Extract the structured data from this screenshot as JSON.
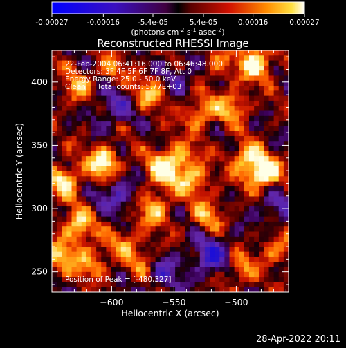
{
  "colorbar": {
    "ticks": [
      "-0.00027",
      "-0.00016",
      "-5.4e-05",
      "5.4e-05",
      "0.00016",
      "0.00027"
    ],
    "tick_values": [
      -0.00027,
      -0.00016,
      -5.4e-05,
      5.4e-05,
      0.00016,
      0.00027
    ],
    "range": [
      -0.00027,
      0.00027
    ],
    "unit_parts": [
      "(photons cm",
      "-2",
      " s",
      "-1",
      " asec",
      "-2",
      ")"
    ]
  },
  "chart_data": {
    "type": "heatmap",
    "title": "Reconstructed RHESSI Image",
    "xlabel": "Heliocentric X (arcsec)",
    "ylabel": "Heliocentric Y (arcsec)",
    "xlim": [
      -648,
      -458
    ],
    "ylim": [
      234,
      425
    ],
    "x_ticks": [
      -600,
      -550,
      -500
    ],
    "x_tick_labels": [
      "−600",
      "−550",
      "−500"
    ],
    "y_ticks": [
      250,
      300,
      350,
      400
    ],
    "y_tick_labels": [
      "250",
      "300",
      "350",
      "400"
    ],
    "grid": false,
    "info_lines": [
      "22-Feb-2004 06:41:16.000 to 06:46:48.000",
      "Detectors: 3F 4F 5F 6F 7F 8F, Att 0",
      "Energy Range: 25.0 - 50.0 keV",
      "Clean     Total counts: 5.77E+03"
    ],
    "peak_label": "Position of Peak = [-480,327]",
    "peak_position": [
      -480,
      327
    ],
    "sources": [
      {
        "x": -478,
        "y": 328,
        "amp": 1.0
      },
      {
        "x": -484,
        "y": 415,
        "amp": 0.85
      },
      {
        "x": -606,
        "y": 336,
        "amp": 0.85
      },
      {
        "x": -638,
        "y": 322,
        "amp": 0.7
      },
      {
        "x": -627,
        "y": 286,
        "amp": 0.65
      },
      {
        "x": -640,
        "y": 262,
        "amp": 0.55
      },
      {
        "x": -616,
        "y": 258,
        "amp": 0.5
      },
      {
        "x": -566,
        "y": 300,
        "amp": 0.6
      },
      {
        "x": -560,
        "y": 330,
        "amp": 0.75
      },
      {
        "x": -546,
        "y": 340,
        "amp": 0.55
      },
      {
        "x": -535,
        "y": 322,
        "amp": 0.6
      },
      {
        "x": -530,
        "y": 375,
        "amp": 0.55
      },
      {
        "x": -570,
        "y": 392,
        "amp": 0.5
      },
      {
        "x": -503,
        "y": 382,
        "amp": 0.55
      },
      {
        "x": -492,
        "y": 340,
        "amp": 0.6
      },
      {
        "x": -522,
        "y": 295,
        "amp": 0.45
      },
      {
        "x": -498,
        "y": 252,
        "amp": 0.5
      },
      {
        "x": -575,
        "y": 258,
        "amp": 0.45
      },
      {
        "x": -590,
        "y": 275,
        "amp": 0.4
      },
      {
        "x": -628,
        "y": 395,
        "amp": 0.45
      },
      {
        "x": -468,
        "y": 268,
        "amp": 0.4
      },
      {
        "x": -515,
        "y": 415,
        "amp": 0.35
      },
      {
        "x": -600,
        "y": 410,
        "amp": 0.35
      }
    ],
    "negative_sources": [
      {
        "x": -520,
        "y": 262,
        "amp": 0.6
      },
      {
        "x": -595,
        "y": 312,
        "amp": 0.45
      },
      {
        "x": -560,
        "y": 250,
        "amp": 0.4
      },
      {
        "x": -600,
        "y": 380,
        "amp": 0.4
      },
      {
        "x": -470,
        "y": 300,
        "amp": 0.35
      },
      {
        "x": -545,
        "y": 405,
        "amp": 0.3
      }
    ]
  },
  "footer": {
    "date": "28-Apr-2022 20:11"
  }
}
